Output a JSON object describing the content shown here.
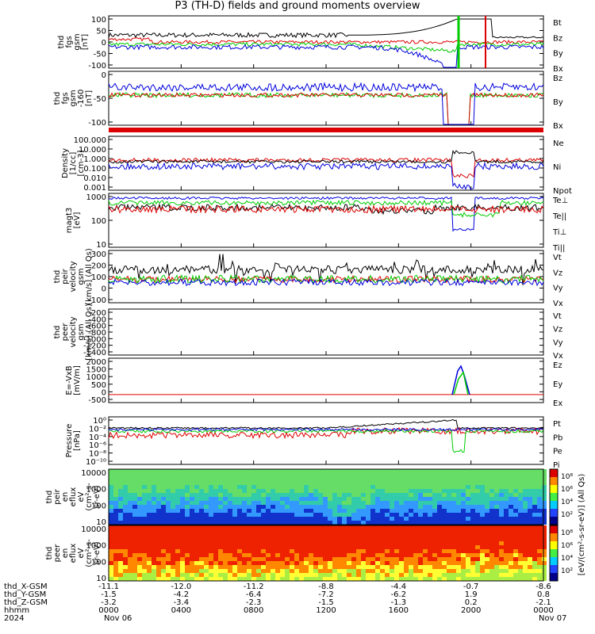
{
  "title": "P3 (TH-D) fields and ground moments overview",
  "chart_data": [
    {
      "type": "line",
      "ylabel": [
        "thd",
        "fgs",
        "gsm",
        "[nT]"
      ],
      "ylim": [
        -100,
        100
      ],
      "yticks": [
        "100",
        "50",
        "0",
        "-50",
        "-100"
      ],
      "legend": [
        {
          "name": "Bt",
          "color": "#000000"
        },
        {
          "name": "Bz",
          "color": "#dd0000"
        },
        {
          "name": "By",
          "color": "#00cc00"
        },
        {
          "name": "Bx",
          "color": "#0000dd"
        }
      ]
    },
    {
      "type": "line",
      "ylabel": [
        "thd",
        "fgs",
        "gsm",
        "-160",
        "[nT]"
      ],
      "ylim": [
        -130,
        25
      ],
      "yticks": [
        "0",
        "-50",
        "-100"
      ],
      "legend": [
        {
          "name": "Bz",
          "color": "#dd0000"
        },
        {
          "name": "By",
          "color": "#00cc00"
        },
        {
          "name": "Bx",
          "color": "#0000dd"
        }
      ]
    },
    {
      "type": "line",
      "ylabel": [
        "Density",
        "[1/cc]",
        "[cm-3]"
      ],
      "scale": "log",
      "yticks": [
        "100.000",
        "10.000",
        "1.000",
        "0.100",
        "0.010",
        "0.001"
      ],
      "legend": [
        {
          "name": "Ne",
          "color": "#dd0000"
        },
        {
          "name": "Ni",
          "color": "#000000"
        },
        {
          "name": "Npot",
          "color": "#0000dd"
        }
      ]
    },
    {
      "type": "line",
      "ylabel": [
        "magt3",
        "[eV]"
      ],
      "scale": "log",
      "yticks": [
        "1000",
        "100",
        "10"
      ],
      "legend": [
        {
          "name": "Te⊥",
          "color": "#dd0000"
        },
        {
          "name": "Te||",
          "color": "#000000"
        },
        {
          "name": "Ti⊥",
          "color": "#00cc00"
        },
        {
          "name": "Ti||",
          "color": "#00cc00"
        }
      ]
    },
    {
      "type": "line",
      "ylabel": [
        "thd",
        "peir",
        "velocity",
        "gsm",
        "[km/s] (All Qs)"
      ],
      "ylim": [
        -150,
        320
      ],
      "yticks": [
        "300",
        "200",
        "100",
        "0",
        "-100"
      ],
      "legend": [
        {
          "name": "Vt",
          "color": "#000000"
        },
        {
          "name": "Vz",
          "color": "#dd0000"
        },
        {
          "name": "Vy",
          "color": "#00cc00"
        },
        {
          "name": "Vx",
          "color": "#0000dd"
        }
      ]
    },
    {
      "type": "line",
      "ylabel": [
        "thd",
        "peer",
        "velocity",
        "gsm",
        "[km/s] (All Qs)"
      ],
      "ylim": [
        -1450,
        0
      ],
      "yticks": [
        "-200",
        "-400",
        "-600",
        "-800",
        "-1000",
        "-1200",
        "-1400"
      ],
      "legend": [
        {
          "name": "Vt",
          "color": "#000000"
        },
        {
          "name": "Vz",
          "color": "#dd0000"
        },
        {
          "name": "Vy",
          "color": "#00cc00"
        },
        {
          "name": "Vx",
          "color": "#0000dd"
        }
      ]
    },
    {
      "type": "line",
      "ylabel": [
        "E=-VxB",
        "[mV/m]"
      ],
      "ylim": [
        -500,
        2000
      ],
      "yticks": [
        "2000",
        "1500",
        "1000",
        "500",
        "0",
        "-500"
      ],
      "legend": [
        {
          "name": "Ez",
          "color": "#dd0000"
        },
        {
          "name": "Ey",
          "color": "#00cc00"
        },
        {
          "name": "Ex",
          "color": "#0000dd"
        }
      ]
    },
    {
      "type": "line",
      "ylabel": [
        "Pressure",
        "[nPa]"
      ],
      "scale": "log",
      "yticks": [
        "10⁰",
        "10⁻²",
        "10⁻⁴",
        "10⁻⁶",
        "10⁻⁸",
        "10⁻¹⁰"
      ],
      "legend": [
        {
          "name": "Pt",
          "color": "#000000"
        },
        {
          "name": "Pb",
          "color": "#dd0000"
        },
        {
          "name": "Pe",
          "color": "#00cc00"
        },
        {
          "name": "Pi",
          "color": "#0000dd"
        }
      ]
    },
    {
      "type": "heatmap",
      "ylabel": [
        "thd",
        "peir",
        "en",
        "eflux",
        "eV",
        "(cm²-s-",
        "sr-eV)"
      ],
      "yticks": [
        "10000",
        "1000",
        "100",
        "10"
      ]
    },
    {
      "type": "heatmap",
      "ylabel": [
        "thd",
        "peer",
        "en",
        "eflux",
        "eV",
        "(cm²-s-",
        "sr-eV)"
      ],
      "yticks": [
        "10000",
        "1000",
        "100",
        "10"
      ]
    }
  ],
  "colorbar": {
    "label": "[eV/(cm²-s-sr-eV)] (All Qs)",
    "ticks": [
      "10⁸",
      "10⁶",
      "10⁴",
      "10²",
      "10⁸",
      "10⁶",
      "10⁴",
      "10²"
    ]
  },
  "xaxis": {
    "row_labels": [
      "thd_X-GSM",
      "thd_Y-GSM",
      "thd_Z-GSM",
      "hhmm",
      "2024"
    ],
    "columns": [
      {
        "values": [
          "-11.1",
          "-1.5",
          "-3.2",
          "0000",
          "Nov 06"
        ]
      },
      {
        "values": [
          "-12.0",
          "-4.2",
          "-3.4",
          "0400",
          ""
        ]
      },
      {
        "values": [
          "-11.2",
          "-6.4",
          "-2.3",
          "0800",
          ""
        ]
      },
      {
        "values": [
          "-8.8",
          "-7.2",
          "-1.5",
          "1200",
          ""
        ]
      },
      {
        "values": [
          "-4.4",
          "-6.2",
          "-1.3",
          "1600",
          ""
        ]
      },
      {
        "values": [
          "-0.7",
          "1.9",
          "0.2",
          "2000",
          ""
        ]
      },
      {
        "values": [
          "-8.6",
          "0.8",
          "-2.1",
          "0000",
          "Nov 07"
        ]
      }
    ]
  }
}
